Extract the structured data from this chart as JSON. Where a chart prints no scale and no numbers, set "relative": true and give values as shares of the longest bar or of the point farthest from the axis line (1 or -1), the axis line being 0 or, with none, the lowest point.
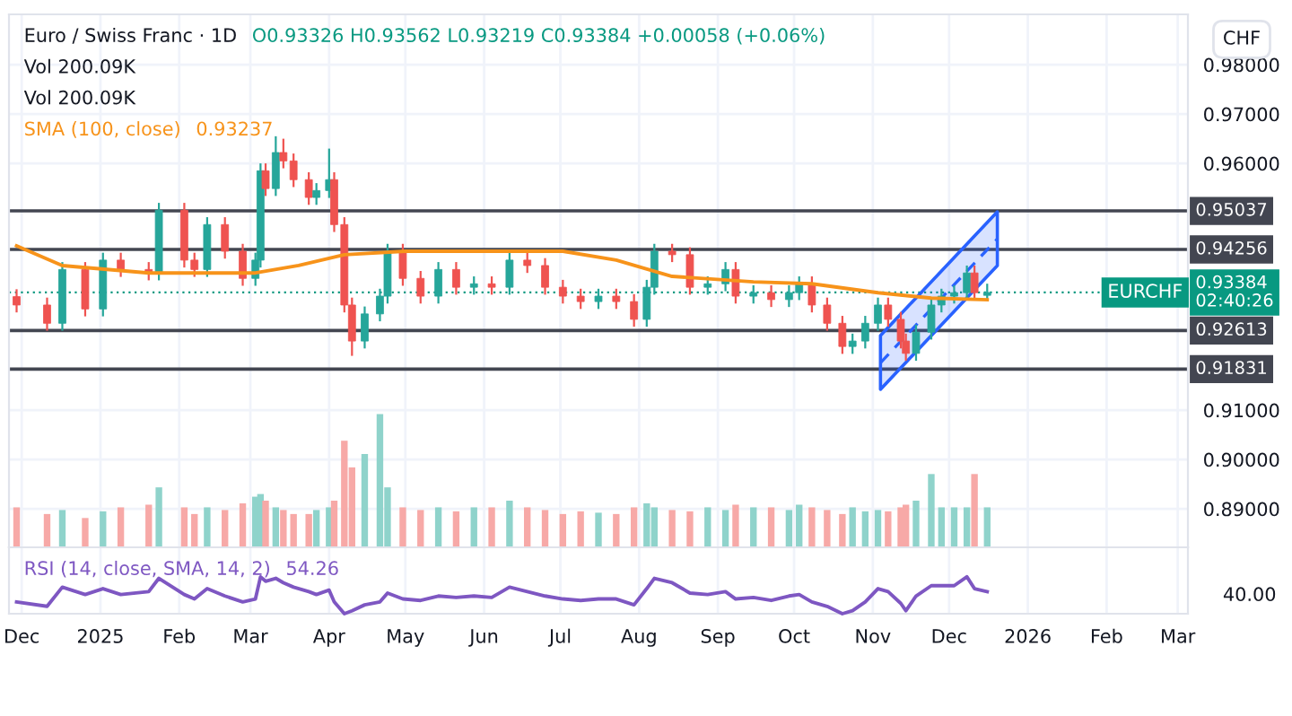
{
  "chart_data": [
    {
      "type": "candlestick",
      "title": "Euro / Swiss Franc · 1D",
      "subtitle": "O0.93326 H0.93562 L0.93219 C0.93384 +0.00058 (+0.06%)",
      "ylabel": "CHF",
      "x": [
        "2024-11-29",
        "2024-12-11",
        "2024-12-17",
        "2024-12-26",
        "2025-01-02",
        "2025-01-09",
        "2025-01-20",
        "2025-01-24",
        "2025-02-03",
        "2025-02-07",
        "2025-02-12",
        "2025-02-19",
        "2025-02-26",
        "2025-03-03",
        "2025-03-05",
        "2025-03-07",
        "2025-03-11",
        "2025-03-14",
        "2025-03-18",
        "2025-03-24",
        "2025-03-27",
        "2025-04-01",
        "2025-04-03",
        "2025-04-07",
        "2025-04-10",
        "2025-04-15",
        "2025-04-21",
        "2025-04-24",
        "2025-04-30",
        "2025-05-07",
        "2025-05-14",
        "2025-05-21",
        "2025-05-28",
        "2025-06-04",
        "2025-06-11",
        "2025-06-18",
        "2025-06-25",
        "2025-07-02",
        "2025-07-09",
        "2025-07-16",
        "2025-07-23",
        "2025-07-30",
        "2025-08-04",
        "2025-08-07",
        "2025-08-14",
        "2025-08-21",
        "2025-08-28",
        "2025-09-04",
        "2025-09-08",
        "2025-09-15",
        "2025-09-22",
        "2025-09-29",
        "2025-10-03",
        "2025-10-08",
        "2025-10-14",
        "2025-10-20",
        "2025-10-24",
        "2025-10-29",
        "2025-11-03",
        "2025-11-07",
        "2025-11-12",
        "2025-11-14",
        "2025-11-18",
        "2025-11-24",
        "2025-11-28",
        "2025-12-03",
        "2025-12-08",
        "2025-12-11",
        "2025-12-16"
      ],
      "ohlc": [
        [
          0.933,
          0.9345,
          0.9298,
          0.9313
        ],
        [
          0.9313,
          0.9328,
          0.9261,
          0.9276
        ],
        [
          0.9276,
          0.94,
          0.9261,
          0.9385
        ],
        [
          0.9385,
          0.94,
          0.929,
          0.9305
        ],
        [
          0.9305,
          0.9419,
          0.929,
          0.9404
        ],
        [
          0.9404,
          0.9419,
          0.937,
          0.9385
        ],
        [
          0.9385,
          0.94,
          0.9363,
          0.9378
        ],
        [
          0.9378,
          0.952,
          0.9363,
          0.9505
        ],
        [
          0.9505,
          0.952,
          0.9389,
          0.9404
        ],
        [
          0.9404,
          0.9419,
          0.937,
          0.9385
        ],
        [
          0.9385,
          0.9491,
          0.937,
          0.9476
        ],
        [
          0.9476,
          0.9491,
          0.9407,
          0.9422
        ],
        [
          0.9422,
          0.9437,
          0.9352,
          0.9367
        ],
        [
          0.9367,
          0.9419,
          0.9352,
          0.9404
        ],
        [
          0.9404,
          0.96,
          0.9389,
          0.9585
        ],
        [
          0.9585,
          0.96,
          0.9534,
          0.9549
        ],
        [
          0.9549,
          0.9655,
          0.9534,
          0.9622
        ],
        [
          0.9622,
          0.965,
          0.959,
          0.9605
        ],
        [
          0.9605,
          0.962,
          0.9552,
          0.9567
        ],
        [
          0.9567,
          0.9582,
          0.9516,
          0.9531
        ],
        [
          0.9531,
          0.956,
          0.9516,
          0.9545
        ],
        [
          0.9545,
          0.963,
          0.953,
          0.9567
        ],
        [
          0.9567,
          0.9582,
          0.9461,
          0.9476
        ],
        [
          0.9476,
          0.9491,
          0.9298,
          0.9313
        ],
        [
          0.9313,
          0.9328,
          0.921,
          0.924
        ],
        [
          0.924,
          0.931,
          0.9225,
          0.9295
        ],
        [
          0.9295,
          0.9346,
          0.928,
          0.9331
        ],
        [
          0.9331,
          0.9437,
          0.9316,
          0.9422
        ],
        [
          0.9422,
          0.9437,
          0.9352,
          0.9367
        ],
        [
          0.9367,
          0.9382,
          0.9316,
          0.9331
        ],
        [
          0.9331,
          0.94,
          0.9316,
          0.9385
        ],
        [
          0.9385,
          0.94,
          0.9334,
          0.9349
        ],
        [
          0.9349,
          0.9371,
          0.9334,
          0.9356
        ],
        [
          0.9356,
          0.9371,
          0.9334,
          0.9349
        ],
        [
          0.9349,
          0.9419,
          0.9334,
          0.9404
        ],
        [
          0.9404,
          0.9419,
          0.9378,
          0.9393
        ],
        [
          0.9393,
          0.9408,
          0.9334,
          0.9349
        ],
        [
          0.9349,
          0.9364,
          0.9316,
          0.9331
        ],
        [
          0.9331,
          0.9346,
          0.9305,
          0.932
        ],
        [
          0.932,
          0.9346,
          0.9305,
          0.9331
        ],
        [
          0.9331,
          0.9346,
          0.9305,
          0.932
        ],
        [
          0.932,
          0.9335,
          0.9269,
          0.9284
        ],
        [
          0.9284,
          0.9364,
          0.9269,
          0.9349
        ],
        [
          0.9349,
          0.9437,
          0.9334,
          0.9422
        ],
        [
          0.9422,
          0.9437,
          0.94,
          0.9415
        ],
        [
          0.9415,
          0.943,
          0.9334,
          0.9349
        ],
        [
          0.9349,
          0.9371,
          0.9334,
          0.9356
        ],
        [
          0.9356,
          0.94,
          0.9341,
          0.9385
        ],
        [
          0.9385,
          0.94,
          0.9316,
          0.9331
        ],
        [
          0.9331,
          0.9353,
          0.9316,
          0.9338
        ],
        [
          0.9338,
          0.9353,
          0.9309,
          0.9324
        ],
        [
          0.9324,
          0.9353,
          0.9309,
          0.9338
        ],
        [
          0.9338,
          0.9371,
          0.9323,
          0.9356
        ],
        [
          0.9356,
          0.9371,
          0.9298,
          0.9313
        ],
        [
          0.9313,
          0.9328,
          0.9261,
          0.9276
        ],
        [
          0.9276,
          0.9291,
          0.9214,
          0.9229
        ],
        [
          0.9229,
          0.9255,
          0.9214,
          0.924
        ],
        [
          0.924,
          0.9291,
          0.9225,
          0.9276
        ],
        [
          0.9276,
          0.9328,
          0.9261,
          0.9313
        ],
        [
          0.9313,
          0.9328,
          0.9269,
          0.9284
        ],
        [
          0.9284,
          0.9299,
          0.9225,
          0.924
        ],
        [
          0.924,
          0.9255,
          0.92,
          0.9215
        ],
        [
          0.9215,
          0.9273,
          0.92,
          0.9258
        ],
        [
          0.9258,
          0.9328,
          0.9243,
          0.9313
        ],
        [
          0.9313,
          0.9346,
          0.9298,
          0.9331
        ],
        [
          0.9331,
          0.9353,
          0.9316,
          0.9338
        ],
        [
          0.9338,
          0.9393,
          0.9323,
          0.9378
        ],
        [
          0.9378,
          0.9393,
          0.9323,
          0.9338
        ],
        [
          0.93326,
          0.93562,
          0.93219,
          0.93384
        ]
      ],
      "colors": [
        "#ef5350",
        "#ef5350",
        "#26a69a",
        "#ef5350",
        "#26a69a",
        "#ef5350",
        "#ef5350",
        "#26a69a",
        "#ef5350",
        "#ef5350",
        "#26a69a",
        "#ef5350",
        "#ef5350",
        "#26a69a",
        "#26a69a",
        "#ef5350",
        "#26a69a",
        "#ef5350",
        "#ef5350",
        "#ef5350",
        "#26a69a",
        "#26a69a",
        "#ef5350",
        "#ef5350",
        "#ef5350",
        "#26a69a",
        "#26a69a",
        "#26a69a",
        "#ef5350",
        "#ef5350",
        "#26a69a",
        "#ef5350",
        "#26a69a",
        "#ef5350",
        "#26a69a",
        "#ef5350",
        "#ef5350",
        "#ef5350",
        "#ef5350",
        "#26a69a",
        "#ef5350",
        "#ef5350",
        "#26a69a",
        "#26a69a",
        "#ef5350",
        "#ef5350",
        "#26a69a",
        "#26a69a",
        "#ef5350",
        "#26a69a",
        "#ef5350",
        "#26a69a",
        "#26a69a",
        "#ef5350",
        "#ef5350",
        "#ef5350",
        "#26a69a",
        "#26a69a",
        "#26a69a",
        "#ef5350",
        "#ef5350",
        "#ef5350",
        "#26a69a",
        "#26a69a",
        "#26a69a",
        "#26a69a",
        "#26a69a",
        "#ef5350",
        "#26a69a"
      ],
      "series": [
        {
          "type": "line",
          "name": "SMA (100, close)",
          "color": "#f7931a",
          "x": [
            "2024-11-29",
            "2024-12-17",
            "2025-01-20",
            "2025-03-03",
            "2025-03-20",
            "2025-04-07",
            "2025-05-01",
            "2025-07-02",
            "2025-07-23",
            "2025-08-14",
            "2025-09-15",
            "2025-10-08",
            "2025-11-03",
            "2025-11-24",
            "2025-12-16"
          ],
          "values": [
            0.9433,
            0.9393,
            0.9378,
            0.9378,
            0.9393,
            0.9415,
            0.9422,
            0.9422,
            0.9404,
            0.9371,
            0.936,
            0.9356,
            0.9338,
            0.9327,
            0.93237
          ]
        },
        {
          "type": "line",
          "color": "#2962ff",
          "line_style": "dashed",
          "x": [
            "2025-11-04",
            "2025-12-20"
          ],
          "values": [
            0.9196,
            0.9447
          ],
          "lower": [
            0.9142,
            0.9393
          ],
          "upper": [
            0.9251,
            0.9502
          ]
        }
      ],
      "ref_lines": [
        {
          "axis": "y",
          "value": 0.95037,
          "label": "0.95037",
          "color": "#434651"
        },
        {
          "axis": "y",
          "value": 0.94256,
          "label": "0.94256",
          "color": "#434651"
        },
        {
          "axis": "y",
          "value": 0.92613,
          "label": "0.92613",
          "color": "#434651"
        },
        {
          "axis": "y",
          "value": 0.91831,
          "label": "0.91831",
          "color": "#434651"
        },
        {
          "axis": "y",
          "value": 0.93384,
          "label": "0.93384\n02:40:26",
          "color": "#089981",
          "line_style": "dotted"
        }
      ],
      "annotations": [
        {
          "text": "EURCHF",
          "x": "2026-03-03",
          "y": 0.93384
        },
        "0.93237"
      ],
      "xlim": [
        "2024-11-26",
        "2026-03-05"
      ],
      "ylim": [
        0.8822,
        0.9902
      ],
      "xticks": [
        {
          "value": "2024-12-01",
          "label": null
        },
        {
          "value": "2025-01-01",
          "label": null
        },
        {
          "value": "2025-02-01",
          "label": null
        },
        {
          "value": "2025-03-01",
          "label": null
        },
        {
          "value": "2025-04-01",
          "label": null
        },
        {
          "value": "2025-05-01",
          "label": null
        },
        {
          "value": "2025-06-01",
          "label": null
        },
        {
          "value": "2025-07-01",
          "label": null
        },
        {
          "value": "2025-08-01",
          "label": null
        },
        {
          "value": "2025-09-01",
          "label": null
        },
        {
          "value": "2025-10-01",
          "label": null
        },
        {
          "value": "2025-11-01",
          "label": null
        },
        {
          "value": "2025-12-01",
          "label": null
        },
        {
          "value": "2026-01-01",
          "label": null
        },
        {
          "value": "2026-02-01",
          "label": null
        },
        {
          "value": "2026-03-01",
          "label": null
        }
      ],
      "yticks": [
        {
          "value": 0.98,
          "label": "0.98000"
        },
        {
          "value": 0.97,
          "label": "0.97000"
        },
        {
          "value": 0.96,
          "label": "0.96000"
        },
        {
          "value": 0.91,
          "label": "0.91000"
        },
        {
          "value": 0.9,
          "label": "0.90000"
        },
        {
          "value": 0.89,
          "label": "0.89000"
        }
      ],
      "grid": true,
      "legend": "top left",
      "tick_labels": "y"
    },
    {
      "type": "bar",
      "relative": true,
      "annotations": [
        "Vol 200.09K",
        "Vol 200.09K"
      ],
      "x": [
        "2024-11-29",
        "2024-12-11",
        "2024-12-17",
        "2024-12-26",
        "2025-01-02",
        "2025-01-09",
        "2025-01-20",
        "2025-01-24",
        "2025-02-03",
        "2025-02-07",
        "2025-02-12",
        "2025-02-19",
        "2025-02-26",
        "2025-03-03",
        "2025-03-05",
        "2025-03-07",
        "2025-03-11",
        "2025-03-14",
        "2025-03-18",
        "2025-03-24",
        "2025-03-27",
        "2025-04-01",
        "2025-04-03",
        "2025-04-07",
        "2025-04-10",
        "2025-04-15",
        "2025-04-21",
        "2025-04-24",
        "2025-04-30",
        "2025-05-07",
        "2025-05-14",
        "2025-05-21",
        "2025-05-28",
        "2025-06-04",
        "2025-06-11",
        "2025-06-18",
        "2025-06-25",
        "2025-07-02",
        "2025-07-09",
        "2025-07-16",
        "2025-07-23",
        "2025-07-30",
        "2025-08-04",
        "2025-08-07",
        "2025-08-14",
        "2025-08-21",
        "2025-08-28",
        "2025-09-04",
        "2025-09-08",
        "2025-09-15",
        "2025-09-22",
        "2025-09-29",
        "2025-10-03",
        "2025-10-08",
        "2025-10-14",
        "2025-10-20",
        "2025-10-24",
        "2025-10-29",
        "2025-11-03",
        "2025-11-07",
        "2025-11-12",
        "2025-11-14",
        "2025-11-18",
        "2025-11-24",
        "2025-11-28",
        "2025-12-03",
        "2025-12-08",
        "2025-12-11",
        "2025-12-16"
      ],
      "values": [
        0.3,
        0.25,
        0.28,
        0.22,
        0.27,
        0.3,
        0.32,
        0.45,
        0.3,
        0.25,
        0.3,
        0.28,
        0.33,
        0.38,
        0.4,
        0.35,
        0.3,
        0.28,
        0.25,
        0.25,
        0.28,
        0.3,
        0.35,
        0.8,
        0.6,
        0.7,
        1.0,
        0.45,
        0.3,
        0.28,
        0.3,
        0.27,
        0.3,
        0.3,
        0.35,
        0.3,
        0.28,
        0.25,
        0.27,
        0.26,
        0.25,
        0.3,
        0.33,
        0.3,
        0.28,
        0.27,
        0.3,
        0.28,
        0.32,
        0.3,
        0.3,
        0.28,
        0.32,
        0.3,
        0.28,
        0.25,
        0.3,
        0.27,
        0.28,
        0.27,
        0.3,
        0.32,
        0.35,
        0.55,
        0.3,
        0.3,
        0.3,
        0.55,
        0.3
      ],
      "colors": [
        "#f7a9a7",
        "#f7a9a7",
        "#8fd3cb",
        "#f7a9a7",
        "#8fd3cb",
        "#f7a9a7",
        "#f7a9a7",
        "#8fd3cb",
        "#f7a9a7",
        "#f7a9a7",
        "#8fd3cb",
        "#f7a9a7",
        "#f7a9a7",
        "#8fd3cb",
        "#8fd3cb",
        "#f7a9a7",
        "#8fd3cb",
        "#f7a9a7",
        "#f7a9a7",
        "#f7a9a7",
        "#8fd3cb",
        "#8fd3cb",
        "#f7a9a7",
        "#f7a9a7",
        "#f7a9a7",
        "#8fd3cb",
        "#8fd3cb",
        "#8fd3cb",
        "#f7a9a7",
        "#f7a9a7",
        "#8fd3cb",
        "#f7a9a7",
        "#8fd3cb",
        "#f7a9a7",
        "#8fd3cb",
        "#f7a9a7",
        "#f7a9a7",
        "#f7a9a7",
        "#f7a9a7",
        "#8fd3cb",
        "#f7a9a7",
        "#f7a9a7",
        "#8fd3cb",
        "#8fd3cb",
        "#f7a9a7",
        "#f7a9a7",
        "#8fd3cb",
        "#8fd3cb",
        "#f7a9a7",
        "#8fd3cb",
        "#f7a9a7",
        "#8fd3cb",
        "#8fd3cb",
        "#f7a9a7",
        "#f7a9a7",
        "#f7a9a7",
        "#8fd3cb",
        "#8fd3cb",
        "#8fd3cb",
        "#f7a9a7",
        "#f7a9a7",
        "#f7a9a7",
        "#8fd3cb",
        "#8fd3cb",
        "#8fd3cb",
        "#8fd3cb",
        "#8fd3cb",
        "#f7a9a7",
        "#8fd3cb"
      ],
      "xlim": [
        "2024-11-26",
        "2026-03-05"
      ],
      "tick_labels": false
    },
    {
      "type": "line",
      "relative": true,
      "legend": "top left",
      "grid": "x",
      "tick_labels": "x",
      "annotations": [
        "54.26",
        "40.00"
      ],
      "series": [
        {
          "name": "RSI (14, close, SMA, 14, 2)",
          "color": "#7e57c2",
          "x": [
            "2024-11-29",
            "2024-12-11",
            "2024-12-17",
            "2024-12-26",
            "2025-01-02",
            "2025-01-09",
            "2025-01-20",
            "2025-01-24",
            "2025-02-03",
            "2025-02-07",
            "2025-02-12",
            "2025-02-19",
            "2025-02-26",
            "2025-03-03",
            "2025-03-05",
            "2025-03-07",
            "2025-03-11",
            "2025-03-14",
            "2025-03-18",
            "2025-03-24",
            "2025-03-27",
            "2025-04-01",
            "2025-04-03",
            "2025-04-07",
            "2025-04-10",
            "2025-04-15",
            "2025-04-21",
            "2025-04-24",
            "2025-04-30",
            "2025-05-07",
            "2025-05-14",
            "2025-05-21",
            "2025-05-28",
            "2025-06-04",
            "2025-06-11",
            "2025-06-18",
            "2025-06-25",
            "2025-07-02",
            "2025-07-09",
            "2025-07-16",
            "2025-07-23",
            "2025-07-30",
            "2025-08-04",
            "2025-08-07",
            "2025-08-14",
            "2025-08-21",
            "2025-08-28",
            "2025-09-04",
            "2025-09-08",
            "2025-09-15",
            "2025-09-22",
            "2025-09-29",
            "2025-10-03",
            "2025-10-08",
            "2025-10-14",
            "2025-10-20",
            "2025-10-24",
            "2025-10-29",
            "2025-11-03",
            "2025-11-07",
            "2025-11-12",
            "2025-11-14",
            "2025-11-18",
            "2025-11-24",
            "2025-11-28",
            "2025-12-03",
            "2025-12-08",
            "2025-12-11",
            "2025-12-16"
          ],
          "values": [
            0.32,
            0.2,
            0.72,
            0.52,
            0.68,
            0.52,
            0.6,
            0.96,
            0.52,
            0.4,
            0.68,
            0.48,
            0.32,
            0.4,
            1.0,
            0.88,
            0.96,
            0.84,
            0.72,
            0.6,
            0.52,
            0.64,
            0.32,
            0,
            0.08,
            0.24,
            0.32,
            0.56,
            0.4,
            0.36,
            0.48,
            0.44,
            0.48,
            0.44,
            0.72,
            0.6,
            0.48,
            0.4,
            0.36,
            0.4,
            0.4,
            0.24,
            0.68,
            0.96,
            0.84,
            0.56,
            0.52,
            0.6,
            0.4,
            0.44,
            0.36,
            0.48,
            0.52,
            0.32,
            0.2,
            0,
            0.08,
            0.32,
            0.68,
            0.6,
            0.28,
            0.08,
            0.48,
            0.76,
            0.76,
            0.76,
            1.0,
            0.68,
            0.6
          ]
        }
      ],
      "xlim": [
        "2024-11-26",
        "2026-03-05"
      ],
      "xticks": [
        {
          "value": "2024-12-01",
          "label": "Dec"
        },
        {
          "value": "2025-01-01",
          "label": "2025"
        },
        {
          "value": "2025-02-01",
          "label": "Feb"
        },
        {
          "value": "2025-03-01",
          "label": "Mar"
        },
        {
          "value": "2025-04-01",
          "label": "Apr"
        },
        {
          "value": "2025-05-01",
          "label": "May"
        },
        {
          "value": "2025-06-01",
          "label": "Jun"
        },
        {
          "value": "2025-07-01",
          "label": "Jul"
        },
        {
          "value": "2025-08-01",
          "label": "Aug"
        },
        {
          "value": "2025-09-01",
          "label": "Sep"
        },
        {
          "value": "2025-10-01",
          "label": "Oct"
        },
        {
          "value": "2025-11-01",
          "label": "Nov"
        },
        {
          "value": "2025-12-01",
          "label": "Dec"
        },
        {
          "value": "2026-01-01",
          "label": "2026"
        },
        {
          "value": "2026-02-01",
          "label": "Feb"
        },
        {
          "value": "2026-03-01",
          "label": "Mar"
        }
      ]
    }
  ]
}
